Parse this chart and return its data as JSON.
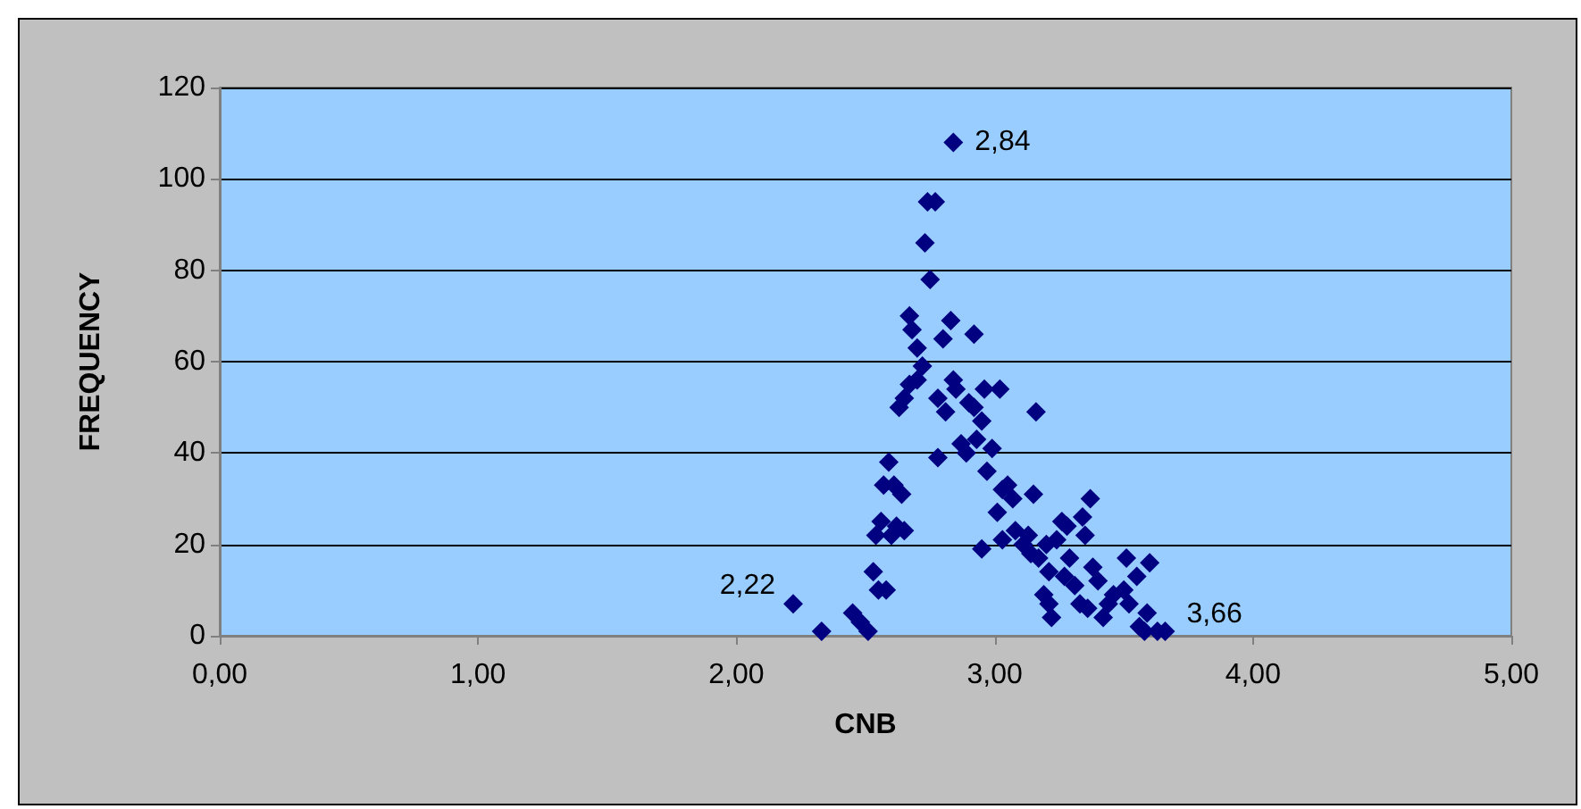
{
  "chart_data": {
    "type": "scatter",
    "xlabel": "CNB",
    "ylabel": "FREQUENCY",
    "marker": "diamond",
    "grid": "y",
    "xlim": [
      0,
      5
    ],
    "xticks": [
      {
        "value": 0,
        "label": "0,00"
      },
      {
        "value": 1,
        "label": "1,00"
      },
      {
        "value": 2,
        "label": "2,00"
      },
      {
        "value": 3,
        "label": "3,00"
      },
      {
        "value": 4,
        "label": "4,00"
      },
      {
        "value": 5,
        "label": "5,00"
      }
    ],
    "ylim": [
      0,
      120
    ],
    "yticks": [
      0,
      20,
      40,
      60,
      80,
      100,
      120
    ],
    "annotations": [
      {
        "text": "2,84",
        "x": 2.84,
        "y": 108
      },
      {
        "text": "2,22",
        "x": 2.22,
        "y": 7
      },
      {
        "text": "3,66",
        "x": 3.66,
        "y": 1
      }
    ],
    "series": [
      {
        "color": "#000080",
        "x": [
          2.22,
          2.33,
          2.45,
          2.48,
          2.51,
          2.53,
          2.55,
          2.58,
          2.54,
          2.56,
          2.6,
          2.59,
          2.57,
          2.61,
          2.64,
          2.62,
          2.65,
          2.63,
          2.65,
          2.67,
          2.7,
          2.72,
          2.7,
          2.67,
          2.68,
          2.73,
          2.74,
          2.77,
          2.75,
          2.84,
          2.8,
          2.83,
          2.78,
          2.78,
          2.81,
          2.84,
          2.85,
          2.9,
          2.92,
          2.87,
          2.89,
          2.93,
          2.95,
          2.92,
          2.96,
          3.02,
          2.99,
          2.97,
          2.95,
          3.03,
          3.01,
          3.05,
          3.07,
          3.03,
          3.08,
          3.11,
          3.13,
          3.16,
          3.15,
          3.14,
          3.17,
          3.2,
          3.21,
          3.19,
          3.21,
          3.22,
          3.24,
          3.26,
          3.28,
          3.29,
          3.27,
          3.31,
          3.33,
          3.36,
          3.34,
          3.37,
          3.35,
          3.38,
          3.4,
          3.42,
          3.44,
          3.46,
          3.5,
          3.51,
          3.55,
          3.52,
          3.56,
          3.59,
          3.6,
          3.63,
          3.66,
          3.58
        ],
        "values": [
          7,
          1,
          5,
          3,
          1,
          14,
          10,
          10,
          22,
          25,
          22,
          38,
          33,
          33,
          31,
          24,
          23,
          50,
          52,
          55,
          56,
          59,
          63,
          70,
          67,
          86,
          95,
          95,
          78,
          108,
          65,
          69,
          39,
          52,
          49,
          56,
          54,
          51,
          66,
          42,
          40,
          43,
          47,
          50,
          54,
          54,
          41,
          36,
          19,
          32,
          27,
          33,
          30,
          21,
          23,
          20,
          22,
          49,
          31,
          18,
          17,
          20,
          14,
          9,
          7,
          4,
          21,
          25,
          24,
          17,
          13,
          11,
          7,
          6,
          26,
          30,
          22,
          15,
          12,
          4,
          7,
          9,
          10,
          17,
          13,
          7,
          2,
          5,
          16,
          1,
          1,
          1
        ]
      }
    ]
  }
}
